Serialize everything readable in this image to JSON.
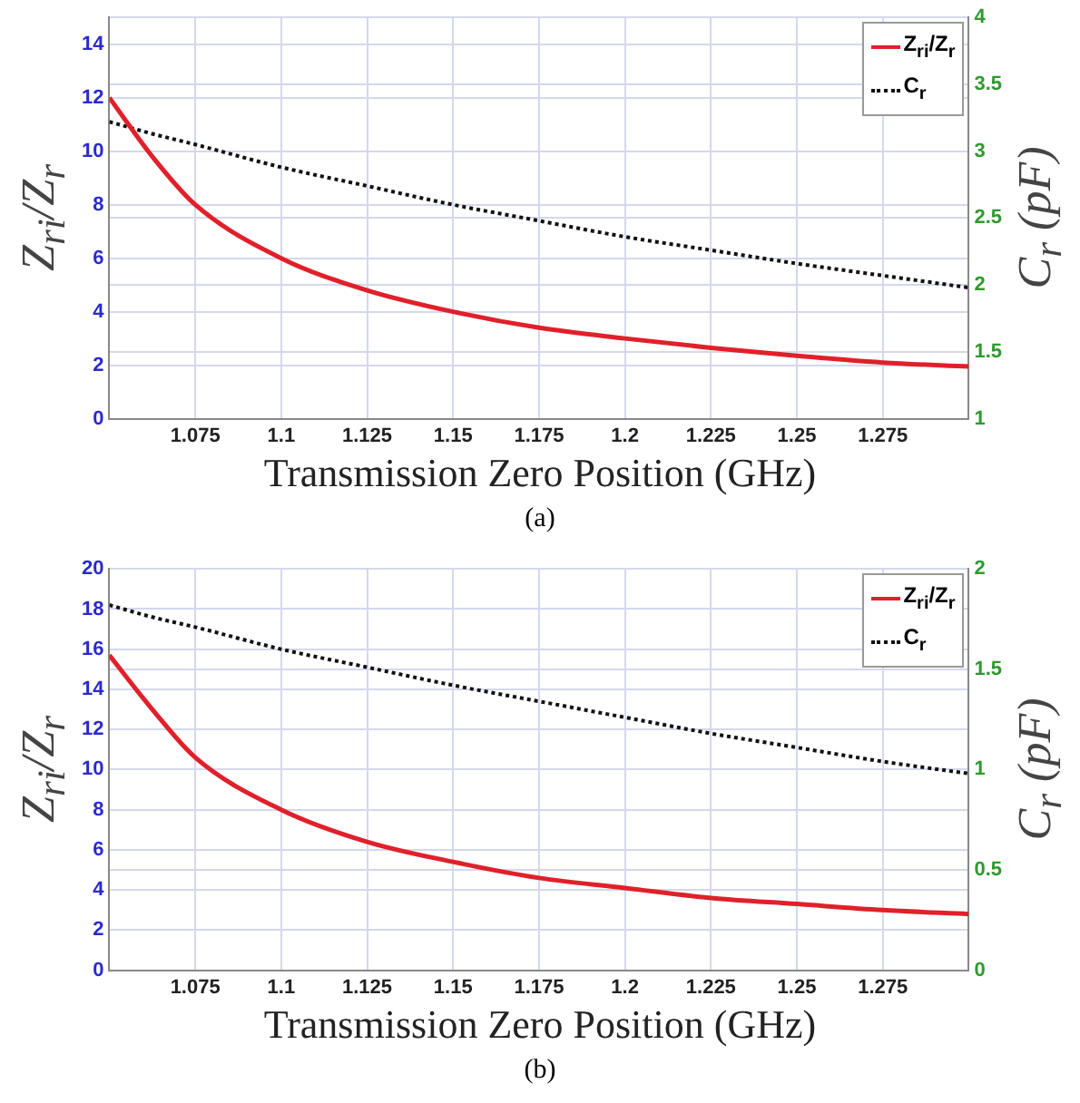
{
  "chart_data": [
    {
      "type": "line",
      "xlabel": "Transmission  Zero Position (GHz)",
      "ylabel": "Z$_{ri}$/Z$_{r}$",
      "y2label": "C$_{r}$ (pF)",
      "annotations": [
        "(a)"
      ],
      "x": [
        1.05,
        1.0625,
        1.075,
        1.1,
        1.125,
        1.15,
        1.175,
        1.2,
        1.225,
        1.25,
        1.275,
        1.3
      ],
      "series": [
        {
          "name": "Z$_{ri}$/Z$_{r}$",
          "color": "#e0202a",
          "line_style": "solid",
          "values": [
            12,
            9.8,
            8,
            6,
            4.8,
            4,
            3.4,
            3,
            2.65,
            2.35,
            2.1,
            1.95
          ]
        },
        {
          "name": "C$_{r}$",
          "color": "#111111",
          "line_style": "dotted",
          "axis": "y2",
          "values": [
            3.22,
            3.13,
            3.05,
            2.88,
            2.74,
            2.6,
            2.48,
            2.36,
            2.26,
            2.16,
            2.07,
            1.98
          ]
        }
      ],
      "xlim": [
        1.05,
        1.3
      ],
      "xticks": [
        1.075,
        1.1,
        1.125,
        1.15,
        1.175,
        1.2,
        1.225,
        1.25,
        1.275
      ],
      "ylim": [
        0,
        15
      ],
      "yticks": [
        0,
        2,
        4,
        6,
        8,
        10,
        12,
        14
      ],
      "y2lim": [
        1,
        4
      ],
      "y2ticks": [
        1,
        1.5,
        2,
        2.5,
        3,
        3.5,
        4
      ],
      "grid": true,
      "legend": "top right",
      "marker": "none"
    },
    {
      "type": "line",
      "xlabel": "Transmission  Zero Position (GHz)",
      "ylabel": "Z$_{ri}$/Z$_{r}$",
      "y2label": "C$_{r}$ (pF)",
      "annotations": [
        "(b)"
      ],
      "x": [
        1.05,
        1.0625,
        1.075,
        1.1,
        1.125,
        1.15,
        1.175,
        1.2,
        1.225,
        1.25,
        1.275,
        1.3
      ],
      "series": [
        {
          "name": "Z$_{ri}$/Z$_{r}$",
          "color": "#e0202a",
          "line_style": "solid",
          "values": [
            15.7,
            13,
            10.6,
            8,
            6.4,
            5.4,
            4.6,
            4.1,
            3.6,
            3.3,
            3,
            2.8
          ]
        },
        {
          "name": "C$_{r}$",
          "color": "#111111",
          "line_style": "dotted",
          "axis": "y2",
          "values": [
            1.82,
            1.76,
            1.71,
            1.6,
            1.51,
            1.42,
            1.34,
            1.26,
            1.18,
            1.11,
            1.04,
            0.98
          ]
        }
      ],
      "xlim": [
        1.05,
        1.3
      ],
      "xticks": [
        1.075,
        1.1,
        1.125,
        1.15,
        1.175,
        1.2,
        1.225,
        1.25,
        1.275
      ],
      "ylim": [
        0,
        20
      ],
      "yticks": [
        0,
        2,
        4,
        6,
        8,
        10,
        12,
        14,
        16,
        18,
        20
      ],
      "y2lim": [
        0,
        2
      ],
      "y2ticks": [
        0,
        0.5,
        1,
        1.5,
        2
      ],
      "grid": true,
      "legend": "top right",
      "marker": "none"
    }
  ]
}
